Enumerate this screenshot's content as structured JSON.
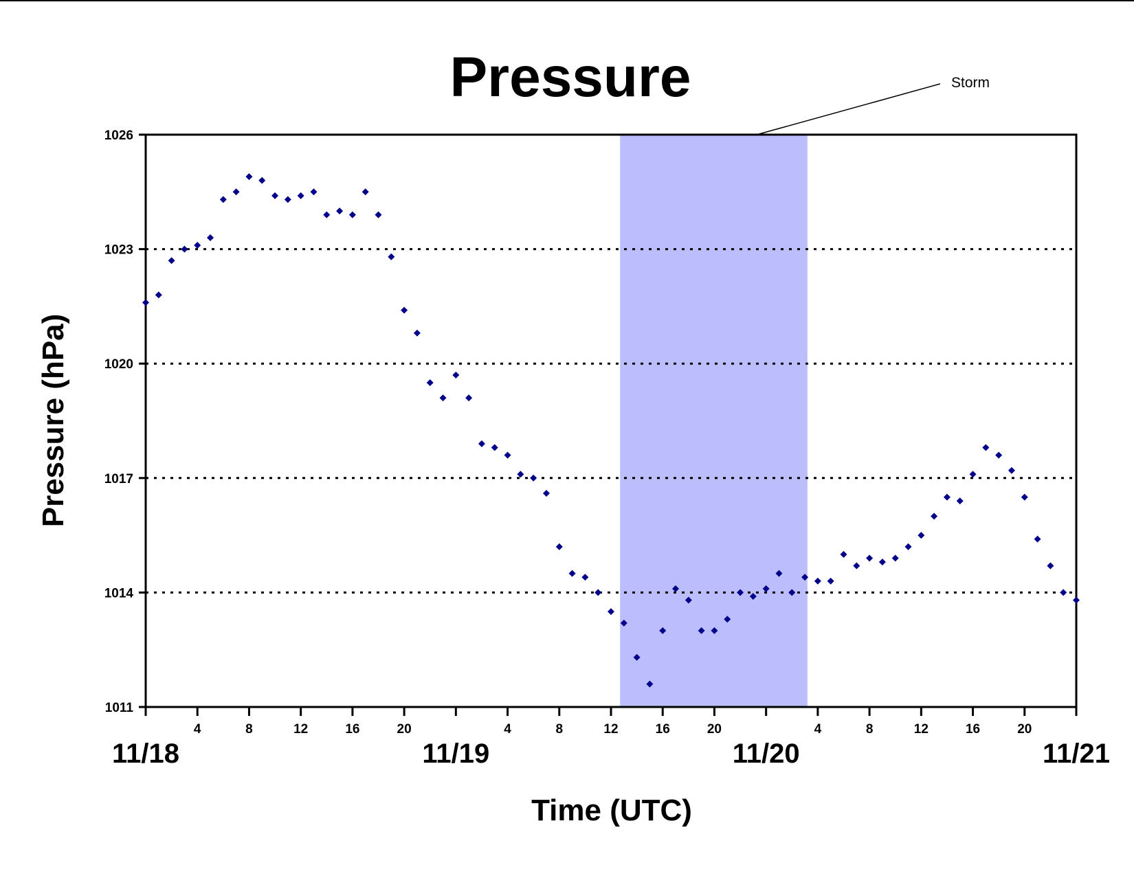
{
  "chart_data": {
    "type": "scatter",
    "title": "Pressure",
    "xlabel": "Time (UTC)",
    "ylabel": "Pressure (hPa)",
    "ylim": [
      1011,
      1026
    ],
    "yticks": [
      1011,
      1014,
      1017,
      1020,
      1023,
      1026
    ],
    "xlim_hours": [
      0,
      72
    ],
    "day_labels": [
      {
        "hour": 0,
        "label": "11/18"
      },
      {
        "hour": 24,
        "label": "11/19"
      },
      {
        "hour": 48,
        "label": "11/20"
      },
      {
        "hour": 72,
        "label": "11/21"
      }
    ],
    "hour_labels": [
      "4",
      "8",
      "12",
      "16",
      "20"
    ],
    "grid": "horizontal dotted",
    "legend": "none",
    "marker_color": "#00008b",
    "annotation": {
      "label": "Storm",
      "start_hour": 36.7,
      "end_hour": 51.2,
      "color": "#bcbdfb"
    },
    "points": [
      {
        "x": 0,
        "y": 1021.6
      },
      {
        "x": 1,
        "y": 1021.8
      },
      {
        "x": 2,
        "y": 1022.7
      },
      {
        "x": 3,
        "y": 1023.0
      },
      {
        "x": 4,
        "y": 1023.1
      },
      {
        "x": 5,
        "y": 1023.3
      },
      {
        "x": 6,
        "y": 1024.3
      },
      {
        "x": 7,
        "y": 1024.5
      },
      {
        "x": 8,
        "y": 1024.9
      },
      {
        "x": 9,
        "y": 1024.8
      },
      {
        "x": 10,
        "y": 1024.4
      },
      {
        "x": 11,
        "y": 1024.3
      },
      {
        "x": 12,
        "y": 1024.4
      },
      {
        "x": 13,
        "y": 1024.5
      },
      {
        "x": 14,
        "y": 1023.9
      },
      {
        "x": 15,
        "y": 1024.0
      },
      {
        "x": 16,
        "y": 1023.9
      },
      {
        "x": 17,
        "y": 1024.5
      },
      {
        "x": 18,
        "y": 1023.9
      },
      {
        "x": 19,
        "y": 1022.8
      },
      {
        "x": 20,
        "y": 1021.4
      },
      {
        "x": 21,
        "y": 1020.8
      },
      {
        "x": 22,
        "y": 1019.5
      },
      {
        "x": 23,
        "y": 1019.1
      },
      {
        "x": 24,
        "y": 1019.7
      },
      {
        "x": 25,
        "y": 1019.1
      },
      {
        "x": 26,
        "y": 1017.9
      },
      {
        "x": 27,
        "y": 1017.8
      },
      {
        "x": 28,
        "y": 1017.6
      },
      {
        "x": 29,
        "y": 1017.1
      },
      {
        "x": 30,
        "y": 1017.0
      },
      {
        "x": 31,
        "y": 1016.6
      },
      {
        "x": 32,
        "y": 1015.2
      },
      {
        "x": 33,
        "y": 1014.5
      },
      {
        "x": 34,
        "y": 1014.4
      },
      {
        "x": 35,
        "y": 1014.0
      },
      {
        "x": 36,
        "y": 1013.5
      },
      {
        "x": 37,
        "y": 1013.2
      },
      {
        "x": 38,
        "y": 1012.3
      },
      {
        "x": 39,
        "y": 1011.6
      },
      {
        "x": 40,
        "y": 1013.0
      },
      {
        "x": 41,
        "y": 1014.1
      },
      {
        "x": 42,
        "y": 1013.8
      },
      {
        "x": 43,
        "y": 1013.0
      },
      {
        "x": 44,
        "y": 1013.0
      },
      {
        "x": 45,
        "y": 1013.3
      },
      {
        "x": 46,
        "y": 1014.0
      },
      {
        "x": 47,
        "y": 1013.9
      },
      {
        "x": 48,
        "y": 1014.1
      },
      {
        "x": 49,
        "y": 1014.5
      },
      {
        "x": 50,
        "y": 1014.0
      },
      {
        "x": 51,
        "y": 1014.4
      },
      {
        "x": 52,
        "y": 1014.3
      },
      {
        "x": 53,
        "y": 1014.3
      },
      {
        "x": 54,
        "y": 1015.0
      },
      {
        "x": 55,
        "y": 1014.7
      },
      {
        "x": 56,
        "y": 1014.9
      },
      {
        "x": 57,
        "y": 1014.8
      },
      {
        "x": 58,
        "y": 1014.9
      },
      {
        "x": 59,
        "y": 1015.2
      },
      {
        "x": 60,
        "y": 1015.5
      },
      {
        "x": 61,
        "y": 1016.0
      },
      {
        "x": 62,
        "y": 1016.5
      },
      {
        "x": 63,
        "y": 1016.4
      },
      {
        "x": 64,
        "y": 1017.1
      },
      {
        "x": 65,
        "y": 1017.8
      },
      {
        "x": 66,
        "y": 1017.6
      },
      {
        "x": 67,
        "y": 1017.2
      },
      {
        "x": 68,
        "y": 1016.5
      },
      {
        "x": 69,
        "y": 1015.4
      },
      {
        "x": 70,
        "y": 1014.7
      },
      {
        "x": 71,
        "y": 1014.0
      },
      {
        "x": 72,
        "y": 1013.8
      }
    ]
  }
}
